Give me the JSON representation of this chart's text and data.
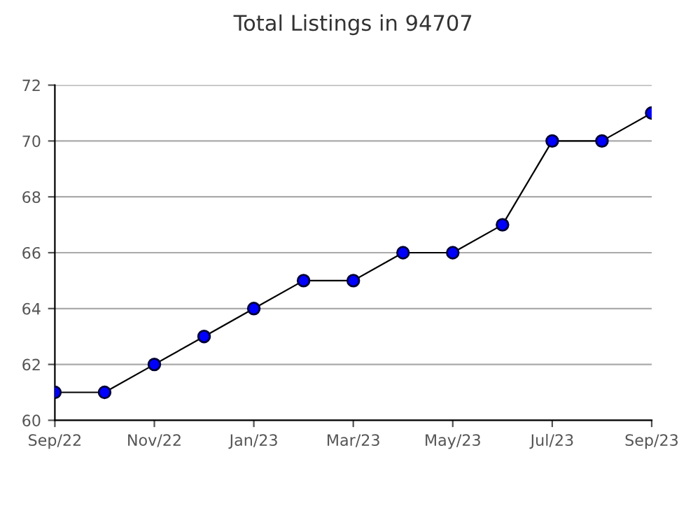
{
  "chart_data": {
    "type": "line",
    "title": "Total Listings in 94707",
    "categories": [
      "Sep/22",
      null,
      "Nov/22",
      null,
      "Jan/23",
      null,
      "Mar/23",
      null,
      "May/23",
      null,
      "Jul/23",
      null,
      "Sep/23"
    ],
    "series": [
      {
        "color": "#0000ff",
        "values": [
          61,
          61,
          62,
          63,
          64,
          65,
          65,
          66,
          66,
          67,
          70,
          70,
          71
        ]
      }
    ],
    "ylim": [
      60,
      72
    ],
    "yticks": [
      60,
      62,
      64,
      66,
      68,
      70,
      72
    ],
    "grid": "y",
    "marker": "circle",
    "line_style": "solid"
  }
}
